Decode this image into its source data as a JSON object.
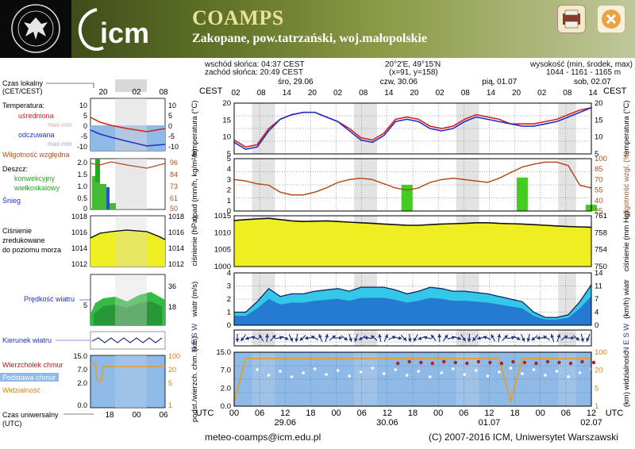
{
  "header": {
    "title": "COAMPS",
    "location": "Zakopane, pow.tatrzański, woj.małopolskie",
    "uw_logo_text": "UNIWERSYTET WARSZAWSKI",
    "icm_logo_text": "icm"
  },
  "info": {
    "sunrise": "wschód słońca: 04:37 CEST",
    "sunset": "zachód słońca: 20:49 CEST",
    "coords": "20°2'E, 49°15'N",
    "grid": "(x=91, y=158)",
    "elevation_label": "wysokość (min, środek, max)",
    "elevation_values": "1044 - 1161 - 1165 m"
  },
  "legend": {
    "local_time": "Czas lokalny",
    "local_time_sub": "(CET/CEST)",
    "temperature": "Temperatura:",
    "averaged": "uśredniona",
    "max_min": "max-min",
    "perceived": "odczuwana",
    "max_min2": "max-min",
    "humidity": "Wilgotność względna",
    "precip": "Deszcz:",
    "convective": "konwekcyjny",
    "large_scale": "wielkoskalowy",
    "snow": "Śnieg",
    "pressure_1": "Ciśnienie",
    "pressure_2": "zredukowane",
    "pressure_3": "do poziomu morza",
    "wind_speed": "Prędkość wiatru",
    "wind_dir": "Kierunek wiatru",
    "cloud_top": "Wierzchołek chmur",
    "cloud_base": "Podstawa chmur",
    "visibility": "Widzialność",
    "utc_time": "Czas uniwersalny",
    "utc_sub": "(UTC)",
    "top_hours": [
      "20",
      "02",
      "08"
    ],
    "bottom_hours": [
      "18",
      "00",
      "06"
    ],
    "temp_ticks": [
      "10",
      "5",
      "0",
      "-5",
      "-10"
    ],
    "rh_ticks": [
      "96",
      "84",
      "73",
      "61",
      "50"
    ],
    "precip_ticks": [
      "2.0",
      "1.5",
      "1.0",
      "0.5",
      "0"
    ],
    "pressure_ticks": [
      "1018",
      "1016",
      "1014",
      "1012"
    ],
    "wind_left_ticks": [
      "5"
    ],
    "wind_right_ticks": [
      "36",
      "18"
    ],
    "cloud_ticks": [
      "15.0",
      "7.0",
      "2.0",
      "0.0"
    ],
    "vis_ticks": [
      "100",
      "20",
      "5",
      "1"
    ]
  },
  "chart_data": {
    "type": "line",
    "hours_utc": [
      "00",
      "06",
      "12",
      "18",
      "00",
      "06",
      "12",
      "18",
      "00",
      "06",
      "12",
      "18",
      "00",
      "06",
      "12"
    ],
    "day_labels_top": [
      {
        "label": "śro, 29.06"
      },
      {
        "label": "czw, 30.06"
      },
      {
        "label": "pią, 01.07"
      },
      {
        "label": "sob, 02.07"
      }
    ],
    "day_labels_bottom": [
      "29.06",
      "30.06",
      "01.07",
      "02.07"
    ],
    "top_hour_labels": [
      "02",
      "08",
      "14",
      "20",
      "02",
      "08",
      "14",
      "20",
      "02",
      "08",
      "14",
      "20",
      "02",
      "08",
      "14"
    ],
    "bottom_hour_labels": [
      "00",
      "06",
      "12",
      "18",
      "00",
      "06",
      "12",
      "18",
      "00",
      "06",
      "12",
      "18",
      "00",
      "06",
      "12"
    ],
    "cest_label": "CEST",
    "utc_label": "UTC",
    "panels": {
      "temperature": {
        "ylabel": "temperatura (°C)",
        "yticks": [
          "20",
          "15",
          "10",
          "5"
        ],
        "ylim": [
          2,
          24
        ],
        "series": [
          {
            "name": "uśredniona",
            "color": "#d42020",
            "values": [
              8,
              5,
              6,
              13,
              17,
              19,
              20,
              20,
              18,
              16,
              13,
              9,
              8,
              11,
              17,
              18,
              17,
              14,
              13,
              14,
              17,
              19,
              18,
              17,
              15,
              15,
              15,
              16,
              17,
              19,
              21,
              22
            ]
          },
          {
            "name": "odczuwana",
            "color": "#2030c8",
            "values": [
              7,
              4,
              5,
              12,
              17,
              19,
              20,
              20,
              18,
              16,
              12,
              8,
              7,
              10,
              16,
              17,
              16,
              13,
              12,
              13,
              16,
              18,
              17,
              16,
              15,
              14,
              14,
              15,
              16,
              18,
              20,
              22
            ]
          }
        ]
      },
      "precip_humidity": {
        "ylabel_left": "opad (mm/h, kg/m²/h)",
        "ylabel_right": "wilgotność wzgl. (%)",
        "yticks_left": [
          "5",
          "4",
          "3",
          "2",
          "1",
          "0"
        ],
        "yticks_right": [
          "100",
          "85",
          "70",
          "55",
          "40",
          "25"
        ],
        "humidity": [
          70,
          68,
          64,
          62,
          52,
          48,
          48,
          52,
          58,
          66,
          70,
          72,
          70,
          64,
          58,
          55,
          58,
          66,
          70,
          72,
          70,
          68,
          66,
          72,
          80,
          88,
          92,
          95,
          95,
          90,
          62,
          58
        ],
        "precip_convective": [
          0,
          0,
          0,
          0,
          0,
          0,
          0,
          0,
          0,
          0,
          0,
          0,
          0,
          0,
          0,
          2.5,
          0,
          0,
          0,
          0,
          0,
          0,
          0,
          0,
          0,
          3.2,
          0,
          0,
          0,
          0,
          0,
          0.6
        ]
      },
      "pressure": {
        "ylabel_left": "ciśnienie (hPa)",
        "ylabel_right": "ciśnienie (mm Hg)",
        "yticks_left": [
          "1015",
          "1010",
          "1005",
          "1000"
        ],
        "yticks_right": [
          "761",
          "758",
          "754",
          "750"
        ],
        "values": [
          1014.5,
          1014.8,
          1015,
          1015.2,
          1014.8,
          1014.4,
          1014.2,
          1014.3,
          1014.4,
          1014.2,
          1014.0,
          1013.8,
          1013.6,
          1013.4,
          1013.2,
          1013.0,
          1013.0,
          1013.2,
          1013.4,
          1013.5,
          1013.6,
          1013.8,
          1013.8,
          1013.6,
          1013.5,
          1013.4,
          1013.2,
          1013.0,
          1012.8,
          1012.6,
          1012.5,
          1012.4
        ]
      },
      "wind": {
        "ylabel_left": "wiatr (m/s)",
        "ylabel_right": "(km/h) wiatr",
        "yticks_left": [
          "4",
          "3",
          "2",
          "1",
          "0"
        ],
        "yticks_right": [
          "14",
          "11",
          "7",
          "4",
          "0"
        ],
        "values": [
          1.0,
          1.0,
          1.8,
          2.8,
          2.2,
          2.4,
          2.4,
          2.6,
          2.7,
          2.8,
          2.6,
          2.9,
          2.9,
          2.9,
          2.7,
          2.4,
          2.6,
          2.9,
          2.8,
          2.6,
          2.6,
          2.5,
          2.4,
          2.2,
          2.0,
          1.8,
          1.0,
          0.6,
          0.6,
          0.8,
          1.8,
          3.1
        ]
      },
      "wind_dir": {
        "label": "N E S W"
      },
      "clouds": {
        "ylabel_left": "podst./wierzch. chm. (km)",
        "ylabel_right": "(km) widzialność",
        "yticks_left": [
          "15.0",
          "7.0",
          "2.0",
          "0.0"
        ],
        "yticks_right": [
          "100",
          "20",
          "5",
          "1"
        ],
        "visibility": [
          0.3,
          20,
          20,
          20,
          20,
          20,
          20,
          20,
          20,
          20,
          20,
          20,
          20,
          20,
          20,
          20,
          20,
          20,
          20,
          20,
          20,
          20,
          20,
          20,
          0.5,
          20,
          20,
          20,
          20,
          20,
          20,
          20
        ]
      }
    }
  },
  "footer": {
    "email": "meteo-coamps@icm.edu.pl",
    "copyright": "(C) 2007-2016 ICM, Uniwersytet Warszawski"
  }
}
